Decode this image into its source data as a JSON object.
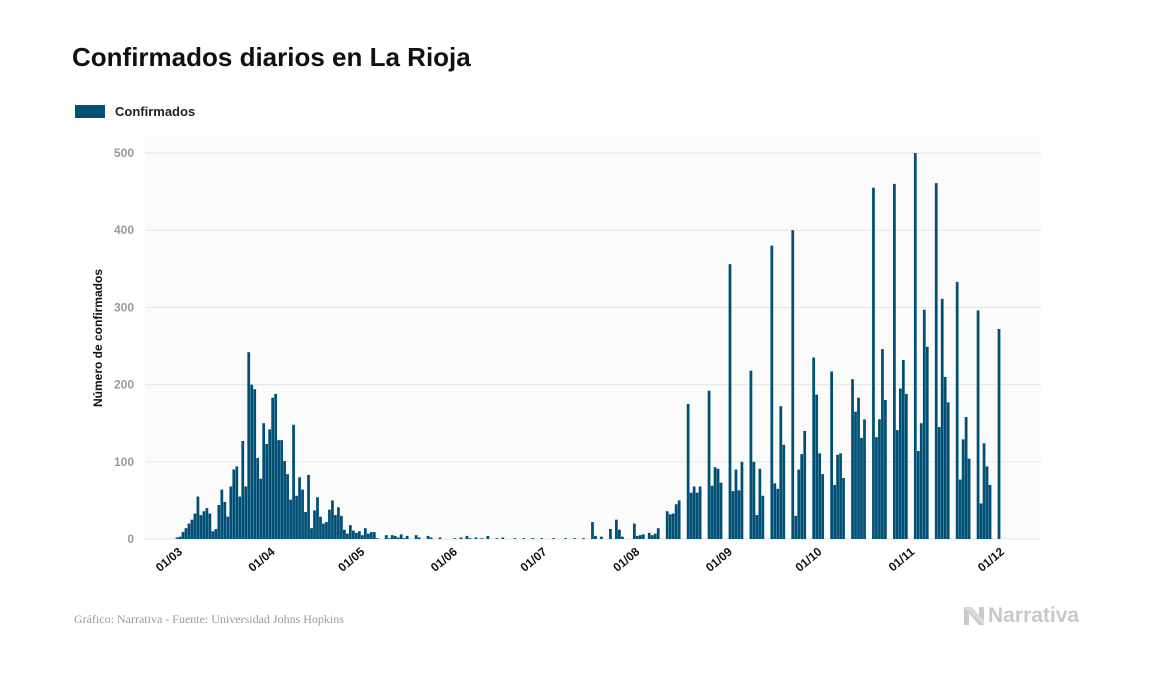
{
  "title": "Confirmados diarios en La Rioja",
  "legend": {
    "label": "Confirmados",
    "color": "#004f74"
  },
  "footer": {
    "source": "Gráfico: Narrativa - Fuente: Universidad Johns Hopkins",
    "brand": "Narrativa",
    "brand_icon": "narrativa-n-logo-icon"
  },
  "chart_data": {
    "type": "bar",
    "title": "Confirmados diarios en La Rioja",
    "xlabel": "",
    "ylabel": "Número de confirmados",
    "ylim": [
      0,
      500
    ],
    "yticks": [
      0,
      100,
      200,
      300,
      400,
      500
    ],
    "grid": true,
    "legend_position": "top-left",
    "x_tick_labels": [
      "01/03",
      "01/04",
      "01/05",
      "01/06",
      "01/07",
      "01/08",
      "01/09",
      "01/10",
      "01/11",
      "01/12"
    ],
    "series": [
      {
        "name": "Confirmados",
        "color": "#004f74",
        "points": [
          [
            "01/03",
            2
          ],
          [
            "02/03",
            3
          ],
          [
            "03/03",
            9
          ],
          [
            "04/03",
            14
          ],
          [
            "05/03",
            20
          ],
          [
            "06/03",
            25
          ],
          [
            "07/03",
            33
          ],
          [
            "08/03",
            55
          ],
          [
            "09/03",
            31
          ],
          [
            "10/03",
            36
          ],
          [
            "11/03",
            40
          ],
          [
            "12/03",
            33
          ],
          [
            "13/03",
            10
          ],
          [
            "14/03",
            13
          ],
          [
            "15/03",
            44
          ],
          [
            "16/03",
            64
          ],
          [
            "17/03",
            48
          ],
          [
            "18/03",
            29
          ],
          [
            "19/03",
            68
          ],
          [
            "20/03",
            90
          ],
          [
            "21/03",
            94
          ],
          [
            "22/03",
            55
          ],
          [
            "23/03",
            127
          ],
          [
            "24/03",
            68
          ],
          [
            "25/03",
            242
          ],
          [
            "26/03",
            200
          ],
          [
            "27/03",
            194
          ],
          [
            "28/03",
            105
          ],
          [
            "29/03",
            78
          ],
          [
            "30/03",
            150
          ],
          [
            "31/03",
            123
          ],
          [
            "01/04",
            142
          ],
          [
            "02/04",
            183
          ],
          [
            "03/04",
            188
          ],
          [
            "04/04",
            128
          ],
          [
            "05/04",
            128
          ],
          [
            "06/04",
            101
          ],
          [
            "07/04",
            84
          ],
          [
            "08/04",
            51
          ],
          [
            "09/04",
            148
          ],
          [
            "10/04",
            56
          ],
          [
            "11/04",
            80
          ],
          [
            "12/04",
            64
          ],
          [
            "13/04",
            35
          ],
          [
            "14/04",
            83
          ],
          [
            "15/04",
            14
          ],
          [
            "16/04",
            37
          ],
          [
            "17/04",
            54
          ],
          [
            "18/04",
            29
          ],
          [
            "19/04",
            20
          ],
          [
            "20/04",
            22
          ],
          [
            "21/04",
            38
          ],
          [
            "22/04",
            50
          ],
          [
            "23/04",
            31
          ],
          [
            "24/04",
            41
          ],
          [
            "25/04",
            30
          ],
          [
            "26/04",
            12
          ],
          [
            "27/04",
            7
          ],
          [
            "28/04",
            18
          ],
          [
            "29/04",
            11
          ],
          [
            "30/04",
            8
          ],
          [
            "01/05",
            10
          ],
          [
            "02/05",
            5
          ],
          [
            "03/05",
            14
          ],
          [
            "04/05",
            7
          ],
          [
            "05/05",
            9
          ],
          [
            "06/05",
            9
          ],
          [
            "07/05",
            1
          ],
          [
            "10/05",
            5
          ],
          [
            "11/05",
            1
          ],
          [
            "12/05",
            5
          ],
          [
            "13/05",
            4
          ],
          [
            "14/05",
            2
          ],
          [
            "15/05",
            6
          ],
          [
            "16/05",
            1
          ],
          [
            "17/05",
            4
          ],
          [
            "20/05",
            5
          ],
          [
            "21/05",
            2
          ],
          [
            "24/05",
            4
          ],
          [
            "25/05",
            2
          ],
          [
            "28/05",
            2
          ],
          [
            "02/06",
            1
          ],
          [
            "04/06",
            2
          ],
          [
            "06/06",
            4
          ],
          [
            "07/06",
            1
          ],
          [
            "09/06",
            2
          ],
          [
            "11/06",
            1
          ],
          [
            "13/06",
            4
          ],
          [
            "16/06",
            1
          ],
          [
            "18/06",
            2
          ],
          [
            "22/06",
            1
          ],
          [
            "25/06",
            1
          ],
          [
            "28/06",
            1
          ],
          [
            "01/07",
            1
          ],
          [
            "05/07",
            1
          ],
          [
            "09/07",
            1
          ],
          [
            "12/07",
            1
          ],
          [
            "15/07",
            1
          ],
          [
            "18/07",
            22
          ],
          [
            "19/07",
            4
          ],
          [
            "21/07",
            3
          ],
          [
            "24/07",
            13
          ],
          [
            "26/07",
            25
          ],
          [
            "27/07",
            12
          ],
          [
            "28/07",
            3
          ],
          [
            "01/08",
            20
          ],
          [
            "02/08",
            4
          ],
          [
            "03/08",
            5
          ],
          [
            "04/08",
            6
          ],
          [
            "06/08",
            8
          ],
          [
            "07/08",
            5
          ],
          [
            "08/08",
            7
          ],
          [
            "09/08",
            14
          ],
          [
            "12/08",
            36
          ],
          [
            "13/08",
            32
          ],
          [
            "14/08",
            33
          ],
          [
            "15/08",
            45
          ],
          [
            "16/08",
            50
          ],
          [
            "19/08",
            175
          ],
          [
            "20/08",
            60
          ],
          [
            "21/08",
            68
          ],
          [
            "22/08",
            60
          ],
          [
            "23/08",
            68
          ],
          [
            "26/08",
            192
          ],
          [
            "27/08",
            69
          ],
          [
            "28/08",
            93
          ],
          [
            "29/08",
            91
          ],
          [
            "30/08",
            73
          ],
          [
            "02/09",
            356
          ],
          [
            "03/09",
            62
          ],
          [
            "04/09",
            90
          ],
          [
            "05/09",
            63
          ],
          [
            "06/09",
            100
          ],
          [
            "09/09",
            218
          ],
          [
            "10/09",
            100
          ],
          [
            "11/09",
            31
          ],
          [
            "12/09",
            91
          ],
          [
            "13/09",
            56
          ],
          [
            "16/09",
            380
          ],
          [
            "17/09",
            72
          ],
          [
            "18/09",
            65
          ],
          [
            "19/09",
            172
          ],
          [
            "20/09",
            122
          ],
          [
            "23/09",
            400
          ],
          [
            "24/09",
            30
          ],
          [
            "25/09",
            90
          ],
          [
            "26/09",
            110
          ],
          [
            "27/09",
            140
          ],
          [
            "30/09",
            235
          ],
          [
            "01/10",
            187
          ],
          [
            "02/10",
            111
          ],
          [
            "03/10",
            84
          ],
          [
            "06/10",
            217
          ],
          [
            "07/10",
            70
          ],
          [
            "08/10",
            109
          ],
          [
            "09/10",
            111
          ],
          [
            "10/10",
            79
          ],
          [
            "13/10",
            207
          ],
          [
            "14/10",
            165
          ],
          [
            "15/10",
            183
          ],
          [
            "16/10",
            131
          ],
          [
            "17/10",
            155
          ],
          [
            "20/10",
            455
          ],
          [
            "21/10",
            132
          ],
          [
            "22/10",
            155
          ],
          [
            "23/10",
            246
          ],
          [
            "24/10",
            180
          ],
          [
            "27/10",
            460
          ],
          [
            "28/10",
            141
          ],
          [
            "29/10",
            195
          ],
          [
            "30/10",
            232
          ],
          [
            "31/10",
            188
          ],
          [
            "03/11",
            500
          ],
          [
            "04/11",
            114
          ],
          [
            "05/11",
            150
          ],
          [
            "06/11",
            297
          ],
          [
            "07/11",
            249
          ],
          [
            "10/11",
            461
          ],
          [
            "11/11",
            145
          ],
          [
            "12/11",
            311
          ],
          [
            "13/11",
            210
          ],
          [
            "14/11",
            177
          ],
          [
            "17/11",
            333
          ],
          [
            "18/11",
            77
          ],
          [
            "19/11",
            129
          ],
          [
            "20/11",
            158
          ],
          [
            "21/11",
            104
          ],
          [
            "24/11",
            296
          ],
          [
            "25/11",
            46
          ],
          [
            "26/11",
            124
          ],
          [
            "27/11",
            94
          ],
          [
            "28/11",
            70
          ],
          [
            "01/12",
            272
          ]
        ]
      }
    ]
  }
}
